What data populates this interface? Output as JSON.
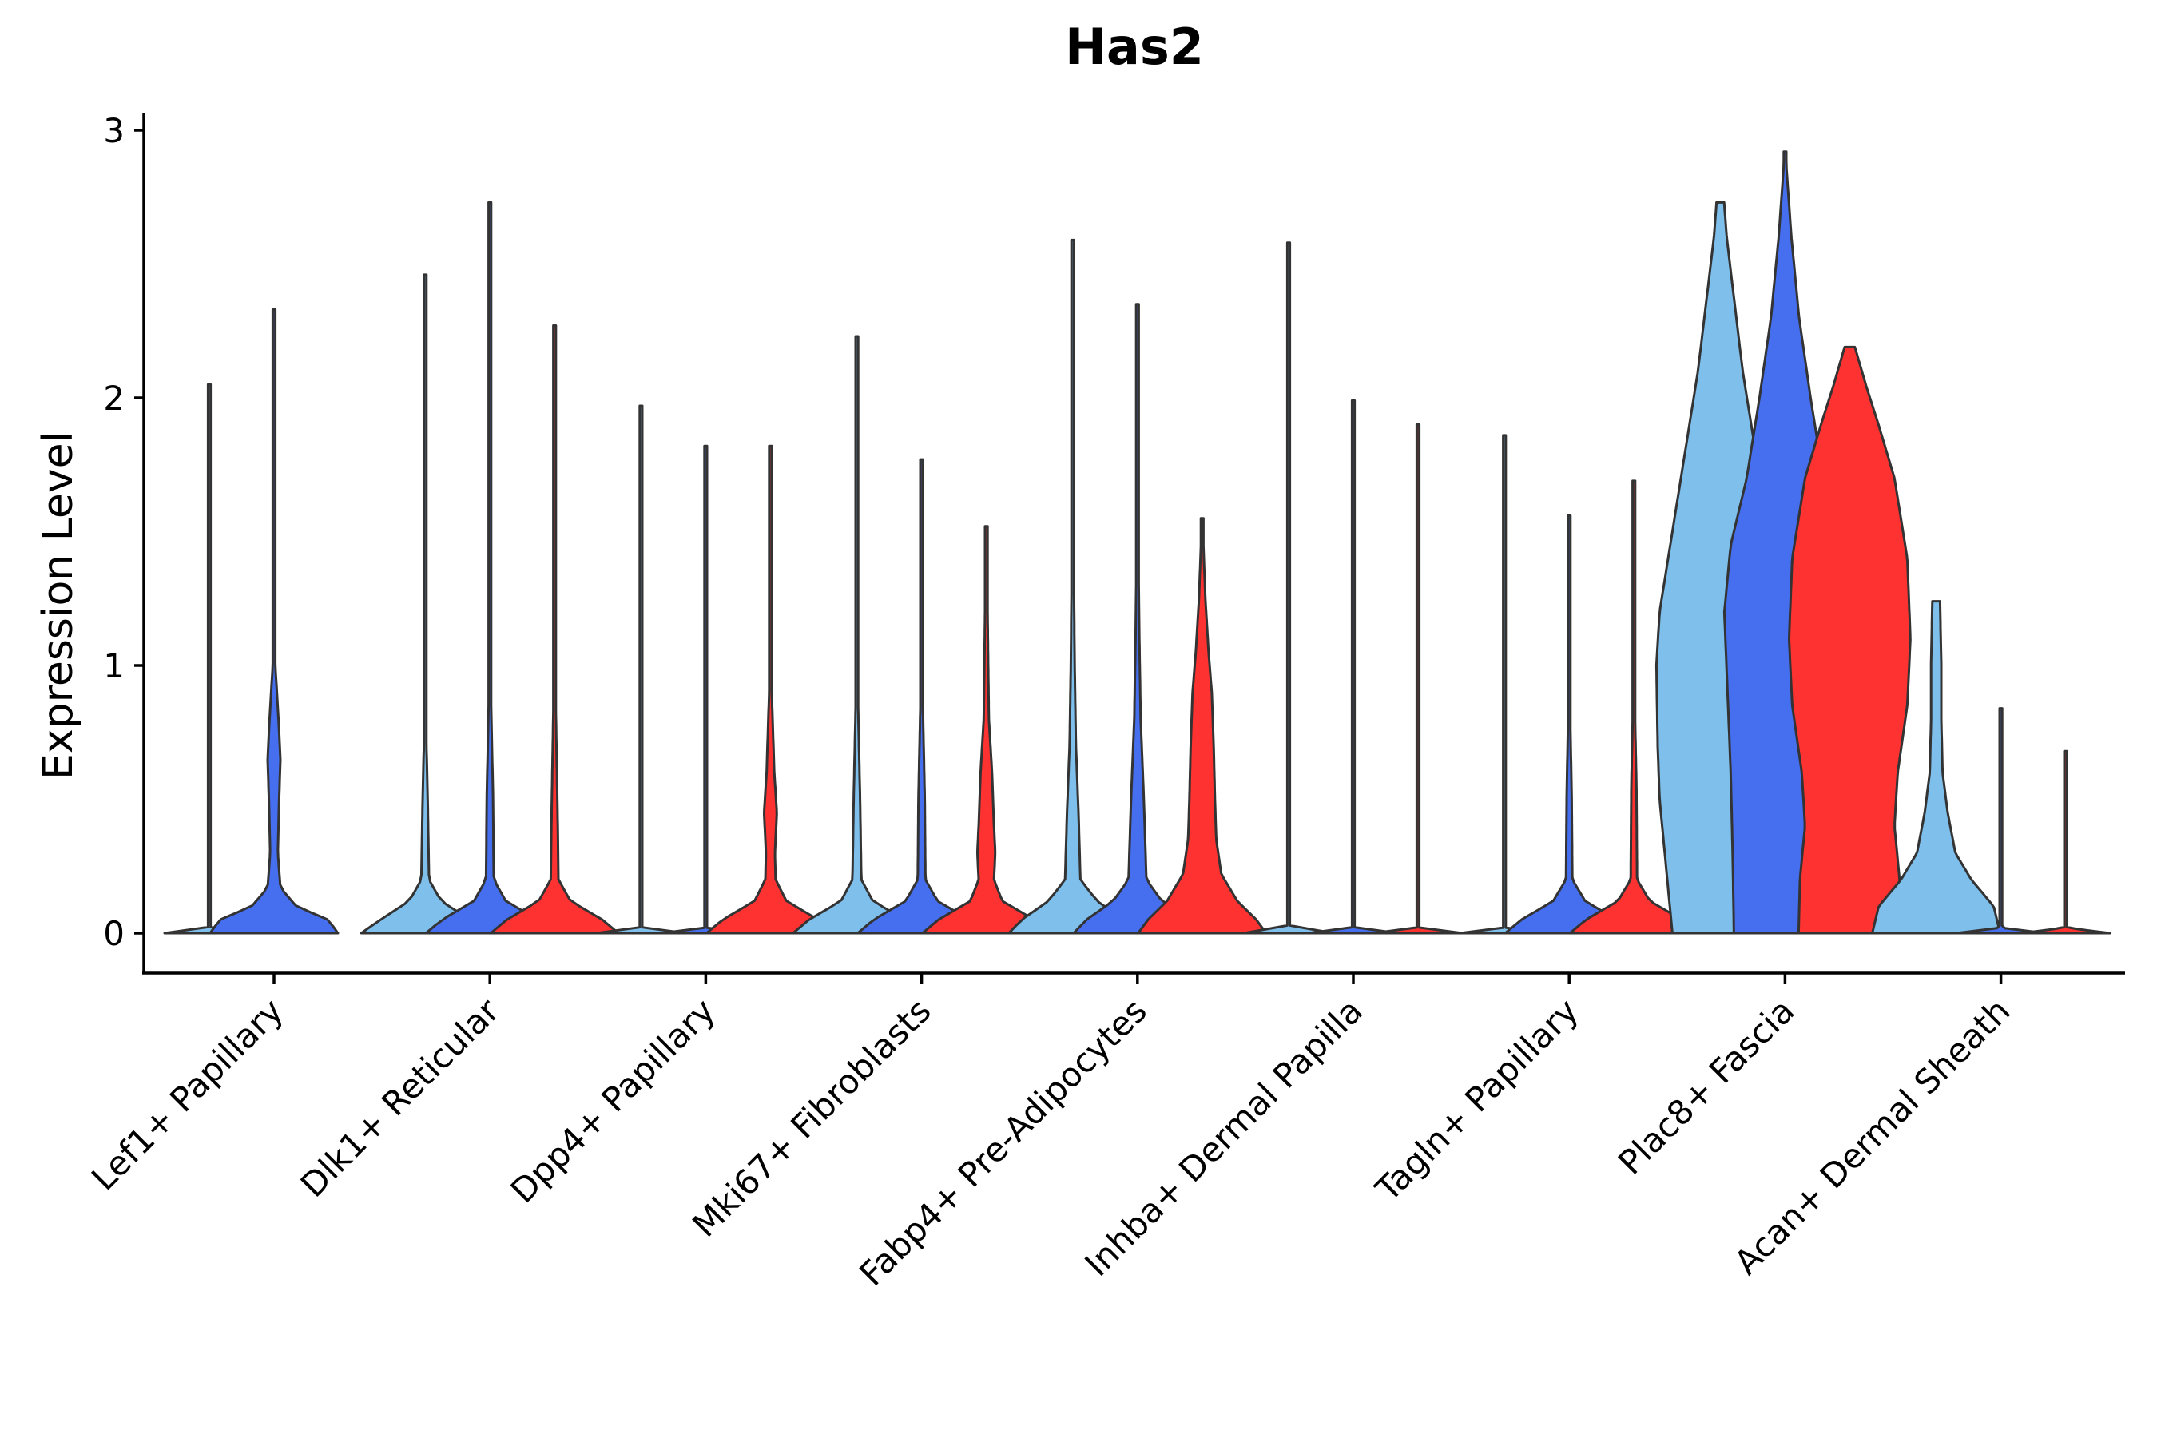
{
  "chart_data": {
    "type": "violin",
    "title": "Has2",
    "xlabel": "",
    "ylabel": "Expression Level",
    "ylim": [
      -0.15,
      3.05
    ],
    "yticks": [
      0,
      1,
      2,
      3
    ],
    "grid": false,
    "legend": "none",
    "colors": {
      "light": "#7fbfec",
      "medium": "#456fee",
      "red": "#ff3232"
    },
    "categories": [
      "Lef1+ Papillary",
      "Dlk1+ Reticular",
      "Dpp4+ Papillary",
      "Mki67+ Fibroblasts",
      "Fabp4+ Pre-Adipocytes",
      "Inhba+ Dermal Papilla",
      "Tagln+ Papillary",
      "Plac8+ Fascia",
      "Acan+ Dermal Sheath"
    ],
    "groups": [
      {
        "category": "Lef1+ Papillary",
        "violins": [
          {
            "color": "light",
            "max": 2.05,
            "profile": [
              [
                0,
                0.7
              ],
              [
                0.02,
                0.015
              ],
              [
                0.5,
                0.008
              ],
              [
                2.05,
                0.004
              ]
            ]
          },
          {
            "color": "medium",
            "max": 2.33,
            "profile": [
              [
                0,
                1
              ],
              [
                0.05,
                0.85
              ],
              [
                0.1,
                0.35
              ],
              [
                0.17,
                0.1
              ],
              [
                0.3,
                0.06
              ],
              [
                0.5,
                0.08
              ],
              [
                0.65,
                0.1
              ],
              [
                0.8,
                0.07
              ],
              [
                1,
                0.02
              ],
              [
                1.4,
                0.006
              ],
              [
                2.33,
                0.004
              ]
            ]
          },
          {
            "color": "red",
            "max": 0,
            "profile": []
          }
        ]
      },
      {
        "category": "Dlk1+ Reticular",
        "violins": [
          {
            "color": "light",
            "max": 2.46,
            "profile": [
              [
                0,
                1
              ],
              [
                0.05,
                0.7
              ],
              [
                0.12,
                0.25
              ],
              [
                0.2,
                0.06
              ],
              [
                0.5,
                0.04
              ],
              [
                0.8,
                0.01
              ],
              [
                1.5,
                0.008
              ],
              [
                2.46,
                0.004
              ]
            ]
          },
          {
            "color": "medium",
            "max": 2.73,
            "profile": [
              [
                0,
                1
              ],
              [
                0.05,
                0.75
              ],
              [
                0.12,
                0.25
              ],
              [
                0.2,
                0.06
              ],
              [
                0.5,
                0.05
              ],
              [
                0.9,
                0.015
              ],
              [
                1.5,
                0.008
              ],
              [
                2.73,
                0.004
              ]
            ]
          },
          {
            "color": "red",
            "max": 2.27,
            "profile": [
              [
                0,
                1
              ],
              [
                0.05,
                0.75
              ],
              [
                0.12,
                0.25
              ],
              [
                0.2,
                0.06
              ],
              [
                0.4,
                0.05
              ],
              [
                0.9,
                0.015
              ],
              [
                1.5,
                0.008
              ],
              [
                2.27,
                0.004
              ]
            ]
          }
        ]
      },
      {
        "category": "Dpp4+ Papillary",
        "violins": [
          {
            "color": "light",
            "max": 1.97,
            "profile": [
              [
                0,
                0.7
              ],
              [
                0.02,
                0.015
              ],
              [
                1.97,
                0.004
              ]
            ]
          },
          {
            "color": "medium",
            "max": 1.82,
            "profile": [
              [
                0,
                0.7
              ],
              [
                0.02,
                0.015
              ],
              [
                1.82,
                0.004
              ]
            ]
          },
          {
            "color": "red",
            "max": 1.82,
            "profile": [
              [
                0,
                1
              ],
              [
                0.05,
                0.75
              ],
              [
                0.12,
                0.25
              ],
              [
                0.2,
                0.08
              ],
              [
                0.3,
                0.07
              ],
              [
                0.45,
                0.1
              ],
              [
                0.6,
                0.06
              ],
              [
                0.9,
                0.02
              ],
              [
                1.82,
                0.004
              ]
            ]
          }
        ]
      },
      {
        "category": "Mki67+ Fibroblasts",
        "violins": [
          {
            "color": "light",
            "max": 2.23,
            "profile": [
              [
                0,
                1
              ],
              [
                0.05,
                0.75
              ],
              [
                0.12,
                0.25
              ],
              [
                0.2,
                0.07
              ],
              [
                0.5,
                0.05
              ],
              [
                0.9,
                0.015
              ],
              [
                2.23,
                0.004
              ]
            ]
          },
          {
            "color": "medium",
            "max": 1.77,
            "profile": [
              [
                0,
                1
              ],
              [
                0.05,
                0.75
              ],
              [
                0.12,
                0.25
              ],
              [
                0.2,
                0.06
              ],
              [
                0.5,
                0.05
              ],
              [
                0.9,
                0.015
              ],
              [
                1.77,
                0.004
              ]
            ]
          },
          {
            "color": "red",
            "max": 1.52,
            "profile": [
              [
                0,
                1
              ],
              [
                0.05,
                0.75
              ],
              [
                0.12,
                0.25
              ],
              [
                0.2,
                0.12
              ],
              [
                0.3,
                0.14
              ],
              [
                0.4,
                0.12
              ],
              [
                0.6,
                0.09
              ],
              [
                0.8,
                0.04
              ],
              [
                1.52,
                0.004
              ]
            ]
          }
        ]
      },
      {
        "category": "Fabp4+ Pre-Adipocytes",
        "violins": [
          {
            "color": "light",
            "max": 2.59,
            "profile": [
              [
                0,
                1
              ],
              [
                0.05,
                0.8
              ],
              [
                0.12,
                0.38
              ],
              [
                0.2,
                0.12
              ],
              [
                0.45,
                0.09
              ],
              [
                0.7,
                0.05
              ],
              [
                1.0,
                0.03
              ],
              [
                1.5,
                0.012
              ],
              [
                2.59,
                0.004
              ]
            ]
          },
          {
            "color": "medium",
            "max": 2.35,
            "profile": [
              [
                0,
                1
              ],
              [
                0.05,
                0.8
              ],
              [
                0.12,
                0.38
              ],
              [
                0.2,
                0.14
              ],
              [
                0.5,
                0.1
              ],
              [
                0.8,
                0.05
              ],
              [
                1.1,
                0.03
              ],
              [
                1.5,
                0.01
              ],
              [
                2.35,
                0.004
              ]
            ]
          },
          {
            "color": "red",
            "max": 1.55,
            "profile": [
              [
                0,
                1
              ],
              [
                0.05,
                0.85
              ],
              [
                0.12,
                0.55
              ],
              [
                0.22,
                0.3
              ],
              [
                0.35,
                0.22
              ],
              [
                0.5,
                0.2
              ],
              [
                0.7,
                0.18
              ],
              [
                0.9,
                0.15
              ],
              [
                1.05,
                0.1
              ],
              [
                1.25,
                0.05
              ],
              [
                1.55,
                0.004
              ]
            ]
          }
        ]
      },
      {
        "category": "Inhba+ Dermal Papilla",
        "violins": [
          {
            "color": "light",
            "max": 2.58,
            "profile": [
              [
                0,
                0.7
              ],
              [
                0.02,
                0.015
              ],
              [
                2.58,
                0.004
              ]
            ]
          },
          {
            "color": "medium",
            "max": 1.99,
            "profile": [
              [
                0,
                0.7
              ],
              [
                0.02,
                0.015
              ],
              [
                1.99,
                0.004
              ]
            ]
          },
          {
            "color": "red",
            "max": 1.9,
            "profile": [
              [
                0,
                0.7
              ],
              [
                0.02,
                0.015
              ],
              [
                1.9,
                0.004
              ]
            ]
          }
        ]
      },
      {
        "category": "Tagln+ Papillary",
        "violins": [
          {
            "color": "light",
            "max": 1.86,
            "profile": [
              [
                0,
                0.7
              ],
              [
                0.02,
                0.015
              ],
              [
                1.86,
                0.004
              ]
            ]
          },
          {
            "color": "medium",
            "max": 1.56,
            "profile": [
              [
                0,
                1
              ],
              [
                0.05,
                0.75
              ],
              [
                0.12,
                0.25
              ],
              [
                0.2,
                0.05
              ],
              [
                0.5,
                0.04
              ],
              [
                0.9,
                0.01
              ],
              [
                1.56,
                0.004
              ]
            ]
          },
          {
            "color": "red",
            "max": 1.69,
            "profile": [
              [
                0,
                1
              ],
              [
                0.05,
                0.75
              ],
              [
                0.12,
                0.25
              ],
              [
                0.2,
                0.05
              ],
              [
                0.55,
                0.04
              ],
              [
                0.9,
                0.01
              ],
              [
                1.69,
                0.004
              ]
            ]
          }
        ]
      },
      {
        "category": "Plac8+ Fascia",
        "violins": [
          {
            "color": "light",
            "max": 2.73,
            "profile": [
              [
                0,
                0.75
              ],
              [
                0.25,
                0.85
              ],
              [
                0.5,
                0.95
              ],
              [
                0.7,
                0.98
              ],
              [
                1.0,
                1.0
              ],
              [
                1.2,
                0.95
              ],
              [
                1.5,
                0.75
              ],
              [
                1.8,
                0.55
              ],
              [
                2.1,
                0.35
              ],
              [
                2.4,
                0.2
              ],
              [
                2.6,
                0.1
              ],
              [
                2.73,
                0.06
              ]
            ]
          },
          {
            "color": "medium",
            "max": 2.92,
            "profile": [
              [
                0,
                0.8
              ],
              [
                0.3,
                0.82
              ],
              [
                0.6,
                0.85
              ],
              [
                0.9,
                0.9
              ],
              [
                1.2,
                0.95
              ],
              [
                1.45,
                0.85
              ],
              [
                1.7,
                0.6
              ],
              [
                2.0,
                0.4
              ],
              [
                2.3,
                0.22
              ],
              [
                2.6,
                0.1
              ],
              [
                2.92,
                0.004
              ]
            ]
          },
          {
            "color": "red",
            "max": 2.19,
            "profile": [
              [
                0,
                0.8
              ],
              [
                0.2,
                0.78
              ],
              [
                0.4,
                0.7
              ],
              [
                0.6,
                0.75
              ],
              [
                0.85,
                0.9
              ],
              [
                1.1,
                0.95
              ],
              [
                1.4,
                0.9
              ],
              [
                1.7,
                0.7
              ],
              [
                1.9,
                0.45
              ],
              [
                2.05,
                0.25
              ],
              [
                2.19,
                0.08
              ]
            ]
          }
        ]
      },
      {
        "category": "Acan+ Dermal Sheath",
        "violins": [
          {
            "color": "light",
            "max": 1.24,
            "profile": [
              [
                0,
                1
              ],
              [
                0.1,
                0.9
              ],
              [
                0.2,
                0.55
              ],
              [
                0.3,
                0.3
              ],
              [
                0.45,
                0.18
              ],
              [
                0.6,
                0.1
              ],
              [
                0.8,
                0.08
              ],
              [
                1.0,
                0.08
              ],
              [
                1.24,
                0.06
              ]
            ]
          },
          {
            "color": "medium",
            "max": 0.84,
            "profile": [
              [
                0,
                0.7
              ],
              [
                0.02,
                0.015
              ],
              [
                0.84,
                0.004
              ]
            ]
          },
          {
            "color": "red",
            "max": 0.68,
            "profile": [
              [
                0,
                0.7
              ],
              [
                0.02,
                0.015
              ],
              [
                0.68,
                0.004
              ]
            ]
          }
        ]
      }
    ]
  }
}
